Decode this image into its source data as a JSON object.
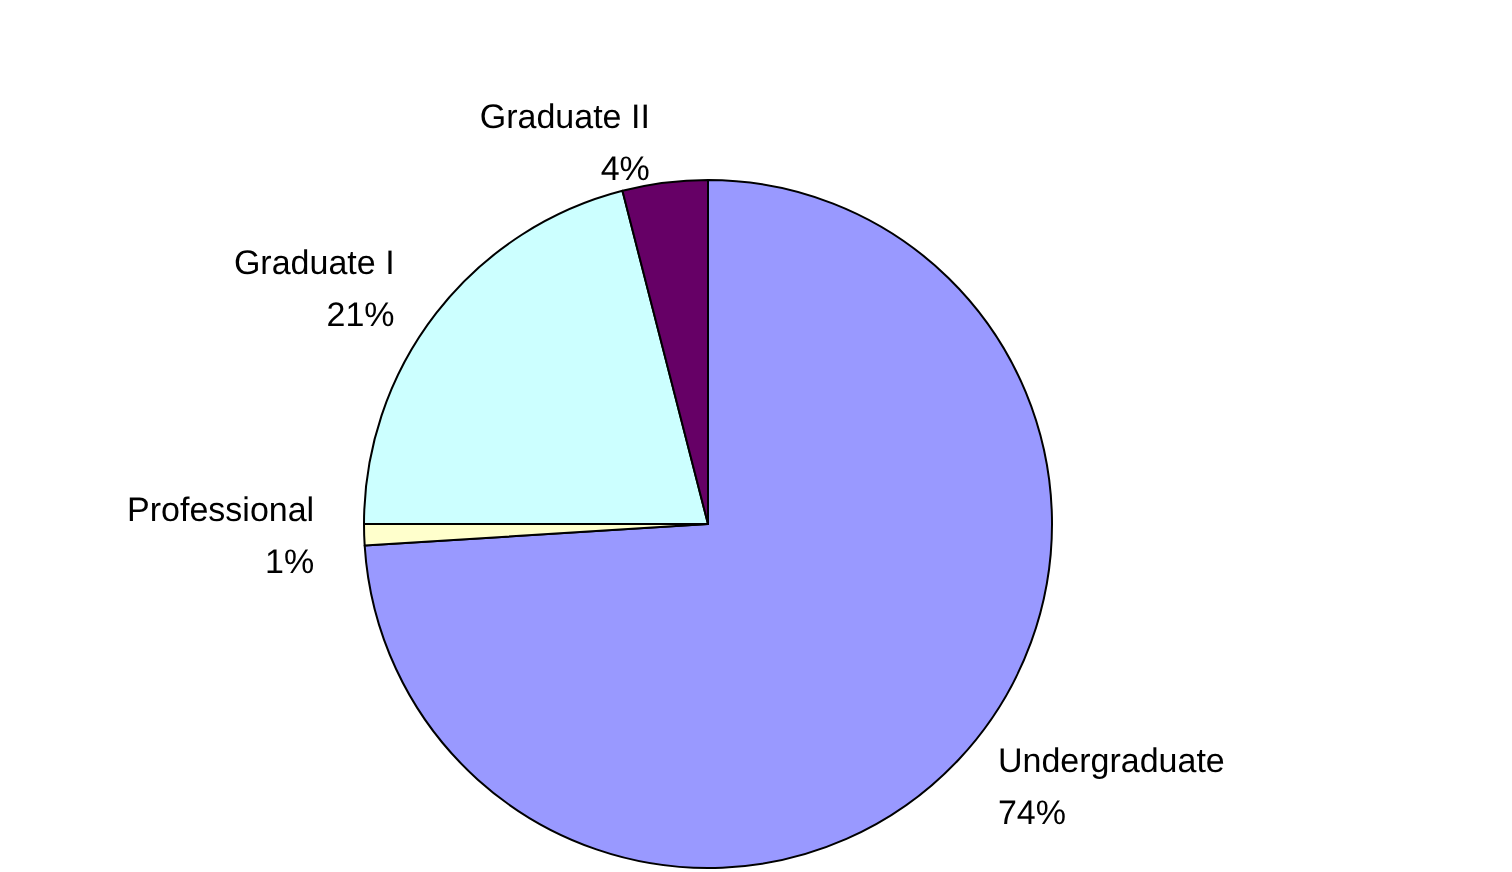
{
  "chart_data": {
    "type": "pie",
    "categories": [
      "Undergraduate",
      "Professional",
      "Graduate I",
      "Graduate II"
    ],
    "values": [
      74,
      1,
      21,
      4
    ],
    "value_labels": [
      "74%",
      "1%",
      "21%",
      "4%"
    ],
    "colors": [
      "#9999ff",
      "#ffffcc",
      "#ccffff",
      "#660066"
    ],
    "legend": false
  }
}
